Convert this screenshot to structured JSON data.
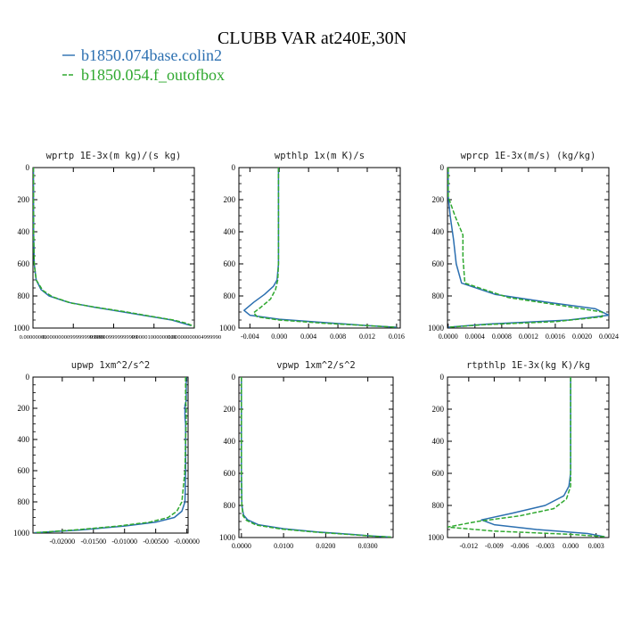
{
  "title": "CLUBB VAR at240E,30N",
  "legend": [
    {
      "label": "b1850.074base.colin2",
      "color": "#2b6fb0",
      "dash": "solid"
    },
    {
      "label": "b1850.054.f_outofbox",
      "color": "#2fa82f",
      "dash": "dashed"
    }
  ],
  "chart_data": [
    {
      "type": "line",
      "title": "wprtp  1E-3x(m kg)/(s kg)",
      "xlim": [
        0,
        1
      ],
      "ylim": [
        1000,
        0
      ],
      "xticks": [
        "0.00000000",
        "0.00000000999999999999",
        "0.000009999999999",
        "0.00001000000001",
        "0.00000000004999990"
      ],
      "yticks": [
        "0",
        "200",
        "400",
        "600",
        "800",
        "1000"
      ],
      "ytick_values": [
        0,
        200,
        400,
        600,
        800,
        1000
      ],
      "series": [
        {
          "name": "b1850.074base.colin2",
          "x": [
            0.003,
            0.004,
            0.008,
            0.02,
            0.05,
            0.1,
            0.22,
            0.38,
            0.56,
            0.74,
            0.86,
            0.93,
            0.98
          ],
          "y": [
            0,
            400,
            600,
            700,
            760,
            800,
            840,
            870,
            900,
            930,
            950,
            970,
            985
          ]
        },
        {
          "name": "b1850.054.f_outofbox",
          "x": [
            0.003,
            0.004,
            0.008,
            0.02,
            0.06,
            0.12,
            0.24,
            0.4,
            0.58,
            0.75,
            0.87,
            0.95,
            1.0
          ],
          "y": [
            0,
            400,
            600,
            700,
            765,
            805,
            845,
            872,
            900,
            930,
            950,
            970,
            990
          ]
        }
      ]
    },
    {
      "type": "line",
      "title": "wpthlp  1x(m K)/s",
      "xlim": [
        -0.0055,
        0.0165
      ],
      "ylim": [
        1000,
        0
      ],
      "xticks": [
        "-0.004",
        "0.000",
        "0.004",
        "0.008",
        "0.012",
        "0.016"
      ],
      "xtick_values": [
        -0.004,
        0.0,
        0.004,
        0.008,
        0.012,
        0.016
      ],
      "yticks": [
        "0",
        "200",
        "400",
        "600",
        "800",
        "1000"
      ],
      "ytick_values": [
        0,
        200,
        400,
        600,
        800,
        1000
      ],
      "series": [
        {
          "name": "b1850.074base.colin2",
          "x": [
            -0.0001,
            -0.0001,
            -0.0001,
            -0.0003,
            -0.0008,
            -0.002,
            -0.0035,
            -0.0048,
            -0.004,
            0.0,
            0.006,
            0.012,
            0.016
          ],
          "y": [
            0,
            400,
            600,
            700,
            740,
            790,
            840,
            890,
            920,
            945,
            965,
            985,
            995
          ]
        },
        {
          "name": "b1850.054.f_outofbox",
          "x": [
            -0.0001,
            -0.0001,
            -0.0001,
            -0.0002,
            -0.0005,
            -0.0012,
            -0.0025,
            -0.0035,
            -0.003,
            0.0,
            0.006,
            0.012,
            0.016
          ],
          "y": [
            0,
            400,
            600,
            700,
            760,
            820,
            870,
            905,
            930,
            950,
            970,
            985,
            995
          ]
        }
      ]
    },
    {
      "type": "line",
      "title": "wprcp  1E-3x(m/s) (kg/kg)",
      "xlim": [
        -1e-05,
        0.0024
      ],
      "ylim": [
        1000,
        0
      ],
      "xticks": [
        "0.0000",
        "0.0004",
        "0.0008",
        "0.0012",
        "0.0016",
        "0.0020",
        "0.0024"
      ],
      "xtick_values": [
        0.0,
        0.0004,
        0.0008,
        0.0012,
        0.0016,
        0.002,
        0.0024
      ],
      "yticks": [
        "0",
        "200",
        "400",
        "600",
        "800",
        "1000"
      ],
      "ytick_values": [
        0,
        200,
        400,
        600,
        800,
        1000
      ],
      "series": [
        {
          "name": "b1850.074base.colin2",
          "x": [
            0.0,
            0.0,
            3e-05,
            8e-05,
            0.00012,
            0.0002,
            0.0007,
            0.0015,
            0.0022,
            0.0024,
            0.0018,
            0.0006,
            0.0
          ],
          "y": [
            0,
            180,
            300,
            450,
            600,
            720,
            790,
            840,
            880,
            920,
            950,
            975,
            995
          ]
        },
        {
          "name": "b1850.054.f_outofbox",
          "x": [
            0.0,
            0.0,
            0.0001,
            0.00022,
            0.00022,
            0.00025,
            0.0009,
            0.0017,
            0.0023,
            0.0023,
            0.0016,
            0.0005,
            0.0
          ],
          "y": [
            0,
            180,
            300,
            420,
            560,
            720,
            810,
            860,
            900,
            930,
            960,
            980,
            995
          ]
        }
      ]
    },
    {
      "type": "line",
      "title": "upwp  1xm^2/s^2",
      "xlim": [
        -0.0247,
        0.0002
      ],
      "ylim": [
        1000,
        0
      ],
      "xticks": [
        "-0.02000",
        "-0.01500",
        "-0.01000",
        "-0.00500",
        "-0.00000"
      ],
      "xtick_values": [
        -0.02,
        -0.015,
        -0.01,
        -0.005,
        0.0
      ],
      "yticks": [
        "0",
        "200",
        "400",
        "600",
        "800",
        "1000"
      ],
      "ytick_values": [
        0,
        200,
        400,
        600,
        800,
        1000
      ],
      "series": [
        {
          "name": "b1850.074base.colin2",
          "x": [
            -0.0001,
            -0.0001,
            -0.0003,
            -0.0003,
            -0.0002,
            -0.0002,
            -0.0003,
            -0.0008,
            -0.002,
            -0.005,
            -0.01,
            -0.017,
            -0.0245
          ],
          "y": [
            0,
            150,
            180,
            260,
            300,
            600,
            800,
            860,
            900,
            930,
            955,
            980,
            998
          ]
        },
        {
          "name": "b1850.054.f_outofbox",
          "x": [
            -0.0002,
            -0.0002,
            -0.0001,
            -0.0001,
            -0.0002,
            -0.0003,
            -0.0008,
            -0.0016,
            -0.003,
            -0.006,
            -0.011,
            -0.018,
            -0.0245
          ],
          "y": [
            0,
            150,
            200,
            280,
            400,
            600,
            800,
            860,
            900,
            930,
            955,
            980,
            998
          ]
        }
      ]
    },
    {
      "type": "line",
      "title": "vpwp  1xm^2/s^2",
      "xlim": [
        -0.0006,
        0.036
      ],
      "ylim": [
        1000,
        0
      ],
      "xticks": [
        "0.0000",
        "0.0100",
        "0.0200",
        "0.0300"
      ],
      "xtick_values": [
        0.0,
        0.01,
        0.02,
        0.03
      ],
      "yticks": [
        "0",
        "200",
        "400",
        "600",
        "800",
        "1000"
      ],
      "ytick_values": [
        0,
        200,
        400,
        600,
        800,
        1000
      ],
      "series": [
        {
          "name": "b1850.074base.colin2",
          "x": [
            0.0,
            0.0,
            0.0,
            0.0001,
            0.0005,
            0.0015,
            0.004,
            0.01,
            0.018,
            0.026,
            0.031,
            0.0355
          ],
          "y": [
            0,
            300,
            600,
            800,
            860,
            890,
            920,
            945,
            965,
            980,
            990,
            997
          ]
        },
        {
          "name": "b1850.054.f_outofbox",
          "x": [
            0.0,
            0.0,
            0.0,
            0.0001,
            0.0004,
            0.0012,
            0.0035,
            0.0095,
            0.0175,
            0.0255,
            0.031,
            0.0355
          ],
          "y": [
            0,
            300,
            600,
            800,
            865,
            893,
            922,
            947,
            966,
            981,
            991,
            997
          ]
        }
      ]
    },
    {
      "type": "line",
      "title": "rtpthlp  1E-3x(kg K)/kg",
      "xlim": [
        -0.0145,
        0.0045
      ],
      "ylim": [
        1000,
        0
      ],
      "xticks": [
        "-0.012",
        "-0.009",
        "-0.006",
        "-0.003",
        "0.000",
        "0.003"
      ],
      "xtick_values": [
        -0.012,
        -0.009,
        -0.006,
        -0.003,
        0.0,
        0.003
      ],
      "yticks": [
        "0",
        "200",
        "400",
        "600",
        "800",
        "1000"
      ],
      "ytick_values": [
        0,
        200,
        400,
        600,
        800,
        1000
      ],
      "series": [
        {
          "name": "b1850.074base.colin2",
          "x": [
            0.0,
            0.0,
            0.0,
            -0.0002,
            -0.0008,
            -0.003,
            -0.007,
            -0.0105,
            -0.009,
            -0.004,
            0.002,
            0.004
          ],
          "y": [
            0,
            400,
            600,
            680,
            740,
            800,
            850,
            890,
            920,
            950,
            975,
            995
          ]
        },
        {
          "name": "b1850.054.f_outofbox",
          "x": [
            0.0,
            0.0,
            0.0,
            0.0,
            -0.0005,
            -0.002,
            -0.006,
            -0.011,
            -0.0145,
            -0.009,
            0.0,
            0.004
          ],
          "y": [
            0,
            400,
            600,
            680,
            760,
            820,
            865,
            900,
            935,
            960,
            980,
            995
          ]
        }
      ]
    }
  ]
}
